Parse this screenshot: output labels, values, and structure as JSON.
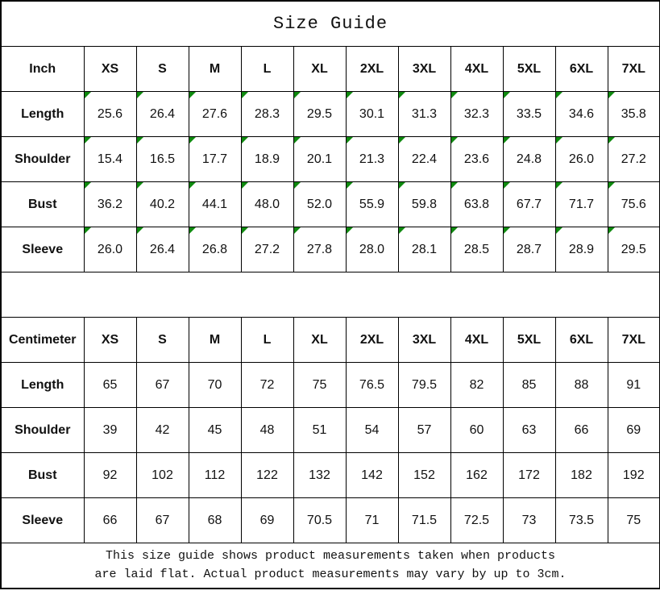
{
  "title": "Size Guide",
  "sizes": [
    "XS",
    "S",
    "M",
    "L",
    "XL",
    "2XL",
    "3XL",
    "4XL",
    "5XL",
    "6XL",
    "7XL"
  ],
  "tables": [
    {
      "unit_label": "Inch",
      "flagged_cells": true,
      "rows": [
        {
          "label": "Length",
          "values": [
            "25.6",
            "26.4",
            "27.6",
            "28.3",
            "29.5",
            "30.1",
            "31.3",
            "32.3",
            "33.5",
            "34.6",
            "35.8"
          ]
        },
        {
          "label": "Shoulder",
          "values": [
            "15.4",
            "16.5",
            "17.7",
            "18.9",
            "20.1",
            "21.3",
            "22.4",
            "23.6",
            "24.8",
            "26.0",
            "27.2"
          ]
        },
        {
          "label": "Bust",
          "values": [
            "36.2",
            "40.2",
            "44.1",
            "48.0",
            "52.0",
            "55.9",
            "59.8",
            "63.8",
            "67.7",
            "71.7",
            "75.6"
          ]
        },
        {
          "label": "Sleeve",
          "values": [
            "26.0",
            "26.4",
            "26.8",
            "27.2",
            "27.8",
            "28.0",
            "28.1",
            "28.5",
            "28.7",
            "28.9",
            "29.5"
          ]
        }
      ]
    },
    {
      "unit_label": "Centimeter",
      "flagged_cells": false,
      "rows": [
        {
          "label": "Length",
          "values": [
            "65",
            "67",
            "70",
            "72",
            "75",
            "76.5",
            "79.5",
            "82",
            "85",
            "88",
            "91"
          ]
        },
        {
          "label": "Shoulder",
          "values": [
            "39",
            "42",
            "45",
            "48",
            "51",
            "54",
            "57",
            "60",
            "63",
            "66",
            "69"
          ]
        },
        {
          "label": "Bust",
          "values": [
            "92",
            "102",
            "112",
            "122",
            "132",
            "142",
            "152",
            "162",
            "172",
            "182",
            "192"
          ]
        },
        {
          "label": "Sleeve",
          "values": [
            "66",
            "67",
            "68",
            "69",
            "70.5",
            "71",
            "71.5",
            "72.5",
            "73",
            "73.5",
            "75"
          ]
        }
      ]
    }
  ],
  "footer": {
    "lines": [
      "This size guide shows product measurements taken when products",
      "are laid flat. Actual product measurements may vary by up to 3cm."
    ]
  },
  "icons": {
    "flag": "stored-as-text-flag-icon"
  },
  "colors": {
    "border": "#000000",
    "text": "#111111",
    "flag_green": "#0f8a0f",
    "background": "#ffffff"
  }
}
